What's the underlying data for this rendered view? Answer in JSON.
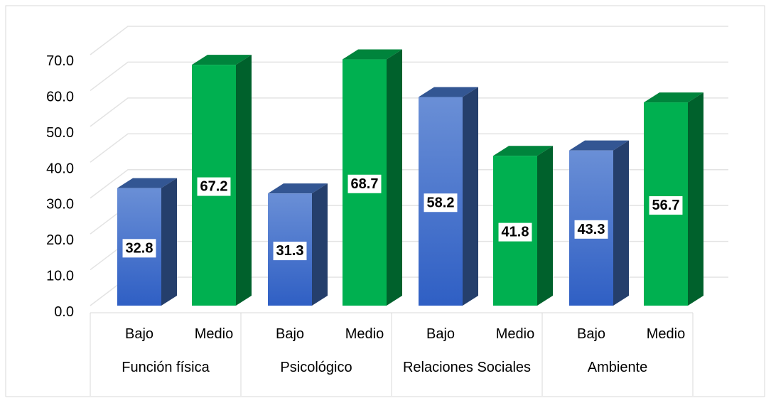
{
  "chart_data": {
    "type": "bar3d",
    "categories": [
      "Función física",
      "Psicológico",
      "Relaciones Sociales",
      "Ambiente"
    ],
    "series": [
      {
        "name": "Bajo",
        "color": "#4472c4",
        "values": [
          32.8,
          31.3,
          58.2,
          43.3
        ]
      },
      {
        "name": "Medio",
        "color": "#00b050",
        "values": [
          67.2,
          68.7,
          41.8,
          56.7
        ]
      }
    ],
    "ylim": [
      0,
      70
    ],
    "yticks": [
      {
        "value": 0,
        "label": "0.0"
      },
      {
        "value": 10,
        "label": "10.0"
      },
      {
        "value": 20,
        "label": "20.0"
      },
      {
        "value": 30,
        "label": "30.0"
      },
      {
        "value": 40,
        "label": "40.0"
      },
      {
        "value": 50,
        "label": "50.0"
      },
      {
        "value": 60,
        "label": "60.0"
      },
      {
        "value": 70,
        "label": "70.0"
      }
    ],
    "grid": true
  }
}
